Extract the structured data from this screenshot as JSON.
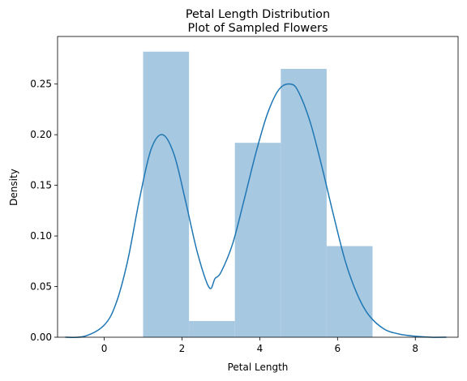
{
  "chart_data": {
    "type": "bar",
    "title": [
      "Petal Length Distribution",
      "Plot of Sampled Flowers"
    ],
    "xlabel": "Petal Length",
    "ylabel": "Density",
    "xlim": [
      -1.2,
      9.1
    ],
    "ylim": [
      0,
      0.297
    ],
    "xticks": [
      0,
      2,
      4,
      6,
      8
    ],
    "yticks": [
      0.0,
      0.05,
      0.1,
      0.15,
      0.2,
      0.25
    ],
    "grid": false,
    "histogram": {
      "color": "#a6c8e0",
      "bins": [
        {
          "x0": 1.0,
          "x1": 2.18,
          "value": 0.282
        },
        {
          "x0": 2.18,
          "x1": 3.36,
          "value": 0.016
        },
        {
          "x0": 3.36,
          "x1": 4.54,
          "value": 0.192
        },
        {
          "x0": 4.54,
          "x1": 5.72,
          "value": 0.265
        },
        {
          "x0": 5.72,
          "x1": 6.9,
          "value": 0.09
        }
      ]
    },
    "kde": {
      "color": "#1f77b4",
      "x": [
        -1.0,
        -0.5,
        0.0,
        0.3,
        0.6,
        0.9,
        1.2,
        1.5,
        1.8,
        2.1,
        2.4,
        2.7,
        2.85,
        3.0,
        3.3,
        3.6,
        3.9,
        4.2,
        4.5,
        4.8,
        5.0,
        5.3,
        5.6,
        5.9,
        6.2,
        6.5,
        6.8,
        7.2,
        7.6,
        8.0,
        8.4,
        8.8
      ],
      "y": [
        0.0,
        0.001,
        0.012,
        0.033,
        0.075,
        0.135,
        0.185,
        0.2,
        0.18,
        0.133,
        0.083,
        0.049,
        0.058,
        0.064,
        0.092,
        0.136,
        0.182,
        0.221,
        0.245,
        0.25,
        0.242,
        0.212,
        0.168,
        0.12,
        0.075,
        0.043,
        0.022,
        0.008,
        0.003,
        0.001,
        0.0,
        0.0
      ]
    }
  }
}
